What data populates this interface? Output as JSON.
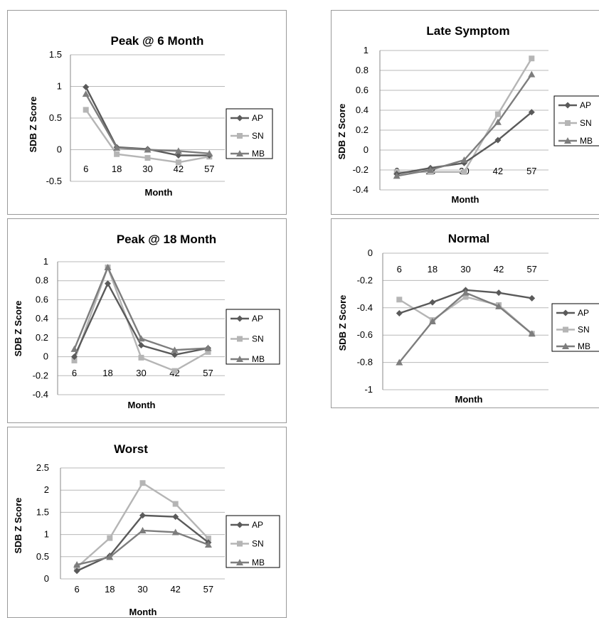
{
  "colors": {
    "AP": "#5a5a5a",
    "SN": "#b5b5b5",
    "MB": "#7d7d7d",
    "grid": "#b8b8b8",
    "border": "#9a9a9a"
  },
  "chart_data": [
    {
      "id": "peak6",
      "type": "line",
      "title": "Peak @ 6 Month",
      "xlabel": "Month",
      "ylabel": "SDB Z Score",
      "categories": [
        "6",
        "18",
        "30",
        "42",
        "57"
      ],
      "ylim": [
        -0.5,
        1.5
      ],
      "yticks": [
        "1.5",
        "1",
        "0.5",
        "0",
        "-0.5"
      ],
      "legend_position": "right",
      "grid": true,
      "series": [
        {
          "name": "AP",
          "marker": "diamond",
          "values": [
            0.99,
            0.04,
            0.01,
            -0.09,
            -0.09
          ]
        },
        {
          "name": "SN",
          "marker": "square",
          "values": [
            0.63,
            -0.07,
            -0.13,
            -0.2,
            -0.11
          ]
        },
        {
          "name": "MB",
          "marker": "triangle",
          "values": [
            0.88,
            0.03,
            0.0,
            -0.02,
            -0.06
          ]
        }
      ]
    },
    {
      "id": "late",
      "type": "line",
      "title": "Late Symptom",
      "xlabel": "Month",
      "ylabel": "SDB Z Score",
      "categories": [
        "6",
        "18",
        "30",
        "42",
        "57"
      ],
      "ylim": [
        -0.4,
        1.0
      ],
      "yticks": [
        "1",
        "0.8",
        "0.6",
        "0.4",
        "0.2",
        "0",
        "-0.2",
        "-0.4"
      ],
      "legend_position": "right",
      "grid": true,
      "series": [
        {
          "name": "AP",
          "marker": "diamond",
          "values": [
            -0.24,
            -0.18,
            -0.13,
            0.1,
            0.38
          ]
        },
        {
          "name": "SN",
          "marker": "square",
          "values": [
            -0.22,
            -0.22,
            -0.22,
            0.36,
            0.92
          ]
        },
        {
          "name": "MB",
          "marker": "triangle",
          "values": [
            -0.26,
            -0.2,
            -0.1,
            0.28,
            0.76
          ]
        }
      ]
    },
    {
      "id": "peak18",
      "type": "line",
      "title": "Peak @ 18 Month",
      "xlabel": "Month",
      "ylabel": "SDB Z Score",
      "categories": [
        "6",
        "18",
        "30",
        "42",
        "57"
      ],
      "ylim": [
        -0.4,
        1.0
      ],
      "yticks": [
        "1",
        "0.8",
        "0.6",
        "0.4",
        "0.2",
        "0",
        "-0.2",
        "-0.4"
      ],
      "legend_position": "right",
      "grid": true,
      "series": [
        {
          "name": "AP",
          "marker": "diamond",
          "values": [
            0.0,
            0.77,
            0.12,
            0.02,
            0.09
          ]
        },
        {
          "name": "SN",
          "marker": "square",
          "values": [
            -0.04,
            0.94,
            -0.01,
            -0.15,
            0.05
          ]
        },
        {
          "name": "MB",
          "marker": "triangle",
          "values": [
            0.08,
            0.94,
            0.19,
            0.07,
            0.09
          ]
        }
      ]
    },
    {
      "id": "normal",
      "type": "line",
      "title": "Normal",
      "xlabel": "Month",
      "ylabel": "SDB Z Score",
      "categories": [
        "6",
        "18",
        "30",
        "42",
        "57"
      ],
      "ylim": [
        -1.0,
        0.0
      ],
      "yticks": [
        "0",
        "-0.2",
        "-0.4",
        "-0.6",
        "-0.8",
        "-1"
      ],
      "legend_position": "right",
      "grid": true,
      "series": [
        {
          "name": "AP",
          "marker": "diamond",
          "values": [
            -0.44,
            -0.36,
            -0.27,
            -0.29,
            -0.33
          ]
        },
        {
          "name": "SN",
          "marker": "square",
          "values": [
            -0.34,
            -0.49,
            -0.32,
            -0.38,
            -0.59
          ]
        },
        {
          "name": "MB",
          "marker": "triangle",
          "values": [
            -0.8,
            -0.5,
            -0.29,
            -0.39,
            -0.59
          ]
        }
      ]
    },
    {
      "id": "worst",
      "type": "line",
      "title": "Worst",
      "xlabel": "Month",
      "ylabel": "SDB Z Score",
      "categories": [
        "6",
        "18",
        "30",
        "42",
        "57"
      ],
      "ylim": [
        0,
        2.5
      ],
      "yticks": [
        "2.5",
        "2",
        "1.5",
        "1",
        "0.5",
        "0"
      ],
      "legend_position": "right",
      "grid": true,
      "series": [
        {
          "name": "AP",
          "marker": "diamond",
          "values": [
            0.18,
            0.52,
            1.43,
            1.4,
            0.82
          ]
        },
        {
          "name": "SN",
          "marker": "square",
          "values": [
            0.26,
            0.92,
            2.16,
            1.69,
            0.91
          ]
        },
        {
          "name": "MB",
          "marker": "triangle",
          "values": [
            0.32,
            0.49,
            1.09,
            1.05,
            0.77
          ]
        }
      ]
    }
  ]
}
